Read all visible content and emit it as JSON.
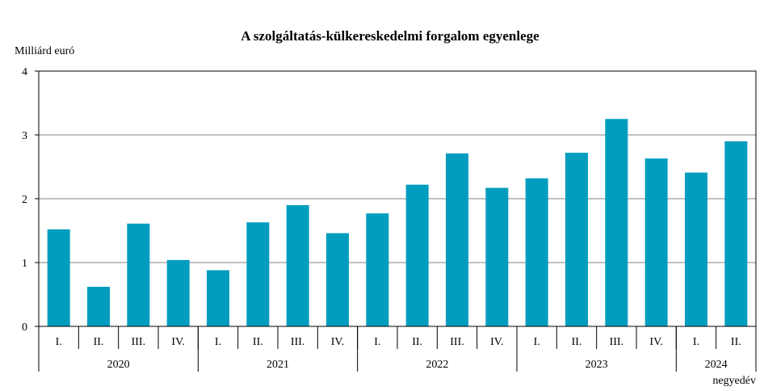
{
  "chart_data": {
    "type": "bar",
    "title": "A szolgáltatás-külkereskedelmi forgalom egyenlege",
    "ylabel": "Milliárd euró",
    "xlabel": "negyedév",
    "ylim": [
      0,
      4
    ],
    "yticks": [
      0,
      1,
      2,
      3,
      4
    ],
    "grid": true,
    "bar_color": "#009DBF",
    "categories": [
      "I.",
      "II.",
      "III.",
      "IV.",
      "I.",
      "II.",
      "III.",
      "IV.",
      "I.",
      "II.",
      "III.",
      "IV.",
      "I.",
      "II.",
      "III.",
      "IV.",
      "I.",
      "II."
    ],
    "years": [
      {
        "label": "2020",
        "quarters": 4
      },
      {
        "label": "2021",
        "quarters": 4
      },
      {
        "label": "2022",
        "quarters": 4
      },
      {
        "label": "2023",
        "quarters": 4
      },
      {
        "label": "2024",
        "quarters": 2
      }
    ],
    "values": [
      1.52,
      0.62,
      1.61,
      1.04,
      0.88,
      1.63,
      1.9,
      1.46,
      1.77,
      2.22,
      2.71,
      2.17,
      2.32,
      2.72,
      3.25,
      2.63,
      2.41,
      2.9
    ]
  }
}
